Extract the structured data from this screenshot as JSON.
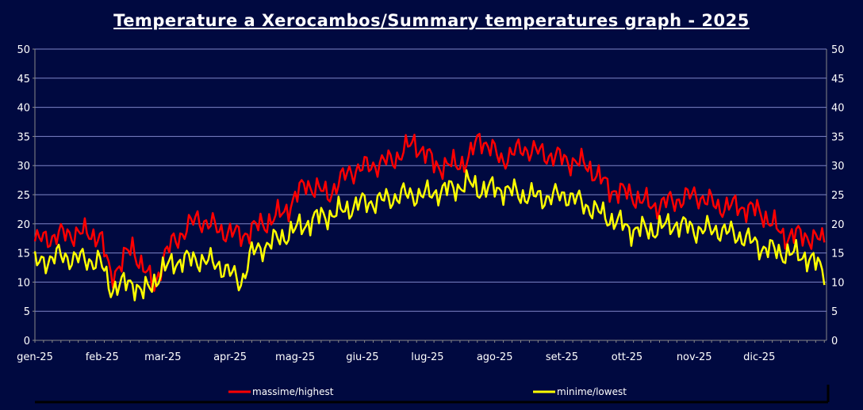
{
  "chart_data": {
    "type": "line",
    "title": "Temperature a Xerocambos/Summary temperatures graph - 2025",
    "xlabel": "",
    "ylabel": "",
    "ylim": [
      0,
      50
    ],
    "yticks": [
      0,
      5,
      10,
      15,
      20,
      25,
      30,
      35,
      40,
      45,
      50
    ],
    "categories": [
      "gen-25",
      "feb-25",
      "mar-25",
      "apr-25",
      "mag-25",
      "giu-25",
      "lug-25",
      "ago-25",
      "set-25",
      "ott-25",
      "nov-25",
      "dic-25"
    ],
    "grid": true,
    "legend_position": "bottom",
    "series": [
      {
        "name": "massime/highest",
        "color": "#ff0000",
        "anchors_day": [
          0,
          10,
          20,
          30,
          35,
          45,
          55,
          59,
          64,
          75,
          85,
          95,
          105,
          115,
          125,
          135,
          145,
          155,
          165,
          175,
          185,
          192,
          200,
          205,
          215,
          225,
          235,
          245,
          255,
          265,
          275,
          285,
          295,
          305,
          315,
          325,
          335,
          345,
          355,
          364
        ],
        "anchors_value": [
          17,
          18,
          18.5,
          18,
          11,
          16,
          9,
          14,
          17,
          21,
          19,
          18,
          20,
          22,
          27,
          25,
          29,
          30,
          31,
          34,
          30,
          30,
          31,
          35,
          31,
          33,
          32,
          31,
          30,
          26,
          25,
          23,
          24,
          25,
          23,
          23,
          22,
          18,
          18,
          17
        ]
      },
      {
        "name": "minime/lowest",
        "color": "#ffff00",
        "anchors_day": [
          0,
          10,
          20,
          30,
          35,
          45,
          50,
          59,
          64,
          75,
          85,
          95,
          100,
          110,
          120,
          130,
          140,
          150,
          160,
          170,
          180,
          192,
          200,
          205,
          215,
          225,
          235,
          245,
          255,
          265,
          275,
          285,
          295,
          305,
          315,
          325,
          335,
          345,
          355,
          364
        ],
        "anchors_value": [
          13,
          14.5,
          14,
          13.5,
          9,
          10,
          8,
          12,
          13.5,
          14,
          13,
          10,
          15,
          17,
          19,
          21,
          22,
          23.5,
          24,
          25,
          25,
          26,
          27,
          26,
          26,
          25,
          24.5,
          25,
          23,
          21,
          19,
          19,
          20,
          19,
          19,
          18,
          16,
          15,
          14.5,
          12
        ]
      }
    ]
  }
}
